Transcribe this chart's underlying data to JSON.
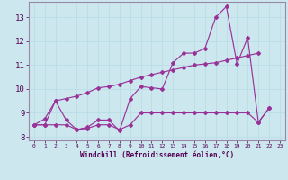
{
  "xlabel": "Windchill (Refroidissement éolien,°C)",
  "background_color": "#cce8ee",
  "grid_color": "#b8dde6",
  "line_color": "#993399",
  "ylim": [
    7.85,
    13.65
  ],
  "xlim": [
    -0.5,
    23.5
  ],
  "yticks": [
    8,
    9,
    10,
    11,
    12,
    13
  ],
  "xticks": [
    0,
    1,
    2,
    3,
    4,
    5,
    6,
    7,
    8,
    9,
    10,
    11,
    12,
    13,
    14,
    15,
    16,
    17,
    18,
    19,
    20,
    21,
    22,
    23
  ],
  "line1_x": [
    0,
    1,
    2,
    3,
    4,
    5,
    6,
    7,
    8,
    9,
    10,
    11,
    12,
    13,
    14,
    15,
    16,
    17,
    18,
    19,
    20,
    21,
    22
  ],
  "line1_y": [
    8.5,
    8.5,
    9.5,
    8.7,
    8.3,
    8.4,
    8.7,
    8.7,
    8.25,
    9.6,
    10.1,
    10.05,
    10.0,
    11.1,
    11.5,
    11.5,
    11.7,
    13.0,
    13.45,
    11.05,
    12.15,
    8.6,
    9.2
  ],
  "line2_x": [
    0,
    1,
    2,
    3,
    4,
    5,
    6,
    7,
    8,
    9,
    10,
    11,
    12,
    13,
    14,
    15,
    16,
    17,
    18,
    19,
    20,
    21,
    22
  ],
  "line2_y": [
    8.5,
    8.5,
    8.5,
    8.5,
    8.3,
    8.35,
    8.5,
    8.5,
    8.3,
    8.5,
    9.0,
    9.0,
    9.0,
    9.0,
    9.0,
    9.0,
    9.0,
    9.0,
    9.0,
    9.0,
    9.0,
    8.6,
    9.2
  ],
  "line3_x": [
    0,
    1,
    2,
    3,
    4,
    5,
    6,
    7,
    8,
    9,
    10,
    11,
    12,
    13,
    14,
    15,
    16,
    17,
    18,
    19,
    20,
    21
  ],
  "line3_y": [
    8.5,
    8.75,
    9.5,
    9.6,
    9.7,
    9.85,
    10.05,
    10.1,
    10.2,
    10.35,
    10.5,
    10.6,
    10.7,
    10.8,
    10.9,
    11.0,
    11.05,
    11.1,
    11.2,
    11.3,
    11.4,
    11.5
  ]
}
